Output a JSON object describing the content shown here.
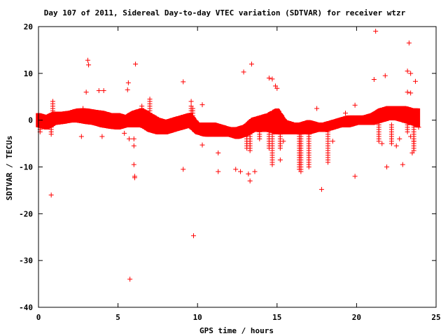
{
  "chart_data": {
    "type": "scatter",
    "title": "Day 107 of 2011, Sidereal Day-to-day VTEC variation (SDTVAR) for receiver wtzr",
    "xlabel": "GPS time / hours",
    "ylabel": "SDTVAR / TECUs",
    "xlim": [
      0,
      25
    ],
    "ylim": [
      -40,
      20
    ],
    "xticks": [
      0,
      5,
      10,
      15,
      20,
      25
    ],
    "yticks": [
      -40,
      -30,
      -20,
      -10,
      0,
      10,
      20
    ],
    "marker": "plus",
    "color": "#ff0000",
    "grid": false,
    "dense_band": [
      [
        0.0,
        -1.5,
        1.5
      ],
      [
        0.5,
        -2.0,
        1.0
      ],
      [
        1.0,
        -1.0,
        1.8
      ],
      [
        1.5,
        -0.8,
        1.8
      ],
      [
        2.0,
        -0.5,
        2.0
      ],
      [
        2.5,
        -0.5,
        2.5
      ],
      [
        3.0,
        -0.8,
        2.5
      ],
      [
        3.5,
        -1.0,
        2.2
      ],
      [
        4.0,
        -1.5,
        2.0
      ],
      [
        4.5,
        -1.8,
        1.5
      ],
      [
        5.0,
        -2.0,
        1.5
      ],
      [
        5.5,
        -1.5,
        1.0
      ],
      [
        6.0,
        -1.5,
        2.0
      ],
      [
        6.5,
        -1.5,
        2.5
      ],
      [
        7.0,
        -2.5,
        1.5
      ],
      [
        7.5,
        -3.0,
        0.5
      ],
      [
        8.0,
        -3.0,
        0.0
      ],
      [
        8.5,
        -2.5,
        0.5
      ],
      [
        9.0,
        -2.0,
        1.0
      ],
      [
        9.5,
        -1.5,
        1.5
      ],
      [
        10.0,
        -3.0,
        -0.5
      ],
      [
        10.5,
        -3.5,
        -0.5
      ],
      [
        11.0,
        -3.5,
        -0.5
      ],
      [
        11.5,
        -3.5,
        -1.0
      ],
      [
        12.0,
        -3.5,
        -1.5
      ],
      [
        12.5,
        -4.0,
        -1.5
      ],
      [
        13.0,
        -3.5,
        -1.0
      ],
      [
        13.5,
        -2.5,
        0.5
      ],
      [
        14.0,
        -2.5,
        1.0
      ],
      [
        14.5,
        -2.5,
        1.5
      ],
      [
        15.0,
        -3.0,
        2.5
      ],
      [
        15.5,
        -3.0,
        0.0
      ],
      [
        16.0,
        -3.0,
        -0.5
      ],
      [
        16.5,
        -3.0,
        -0.5
      ],
      [
        17.0,
        -3.0,
        0.0
      ],
      [
        17.5,
        -2.5,
        -0.5
      ],
      [
        18.0,
        -2.5,
        -0.5
      ],
      [
        18.5,
        -2.0,
        0.0
      ],
      [
        19.0,
        -1.5,
        0.5
      ],
      [
        19.5,
        -1.5,
        1.0
      ],
      [
        20.0,
        -1.0,
        1.0
      ],
      [
        20.5,
        -1.0,
        1.0
      ],
      [
        21.0,
        -1.0,
        1.5
      ],
      [
        21.5,
        -0.5,
        2.5
      ],
      [
        22.0,
        0.0,
        3.0
      ],
      [
        22.5,
        0.0,
        3.0
      ],
      [
        23.0,
        -0.5,
        3.0
      ],
      [
        23.5,
        -1.0,
        2.5
      ],
      [
        23.9,
        -1.5,
        2.5
      ]
    ],
    "spikes": [
      [
        0.1,
        -2.5
      ],
      [
        0.8,
        -3.0
      ],
      [
        0.9,
        4.0
      ],
      [
        6.5,
        3.0
      ],
      [
        7.0,
        4.5
      ],
      [
        9.6,
        3.0
      ],
      [
        9.7,
        2.5
      ],
      [
        13.1,
        -6.0
      ],
      [
        13.3,
        -6.5
      ],
      [
        13.9,
        -4.0
      ],
      [
        14.5,
        -6.0
      ],
      [
        14.7,
        -9.5
      ],
      [
        15.2,
        -6.0
      ],
      [
        16.4,
        -10.5
      ],
      [
        16.5,
        -11.0
      ],
      [
        17.0,
        -10.0
      ],
      [
        18.2,
        -9.0
      ],
      [
        21.4,
        -4.5
      ],
      [
        22.2,
        -5.0
      ],
      [
        23.2,
        -2.5
      ],
      [
        23.6,
        -6.5
      ]
    ],
    "outliers": [
      [
        0.8,
        -16.0
      ],
      [
        2.7,
        -3.5
      ],
      [
        2.8,
        2.5
      ],
      [
        3.0,
        6.0
      ],
      [
        3.1,
        12.8
      ],
      [
        3.15,
        11.8
      ],
      [
        3.8,
        6.3
      ],
      [
        4.1,
        6.3
      ],
      [
        4.0,
        -3.5
      ],
      [
        5.4,
        -2.8
      ],
      [
        5.6,
        6.5
      ],
      [
        5.65,
        8.0
      ],
      [
        5.7,
        -4.0
      ],
      [
        5.75,
        -34.0
      ],
      [
        6.0,
        -4.0
      ],
      [
        6.0,
        -5.5
      ],
      [
        6.0,
        -9.5
      ],
      [
        6.05,
        -12.0
      ],
      [
        6.05,
        -12.3
      ],
      [
        6.1,
        12.0
      ],
      [
        9.1,
        8.2
      ],
      [
        9.1,
        -10.5
      ],
      [
        9.6,
        4.0
      ],
      [
        9.75,
        -24.7
      ],
      [
        10.3,
        3.3
      ],
      [
        10.3,
        -5.3
      ],
      [
        11.3,
        -7.0
      ],
      [
        11.3,
        -11.0
      ],
      [
        12.4,
        -10.5
      ],
      [
        12.7,
        -11.0
      ],
      [
        12.9,
        10.3
      ],
      [
        13.2,
        -11.5
      ],
      [
        13.3,
        -13.0
      ],
      [
        13.4,
        12.0
      ],
      [
        13.6,
        -11.0
      ],
      [
        14.5,
        9.0
      ],
      [
        14.7,
        8.8
      ],
      [
        14.9,
        7.3
      ],
      [
        15.0,
        6.8
      ],
      [
        15.2,
        -8.5
      ],
      [
        15.4,
        -4.5
      ],
      [
        17.5,
        2.5
      ],
      [
        17.8,
        -14.8
      ],
      [
        18.5,
        -4.5
      ],
      [
        19.3,
        1.5
      ],
      [
        19.9,
        3.2
      ],
      [
        19.9,
        -12.0
      ],
      [
        21.2,
        19.0
      ],
      [
        21.1,
        8.7
      ],
      [
        21.6,
        -5.0
      ],
      [
        21.8,
        9.5
      ],
      [
        21.9,
        -10.0
      ],
      [
        22.5,
        -5.5
      ],
      [
        22.7,
        -4.0
      ],
      [
        22.9,
        -9.5
      ],
      [
        23.2,
        10.5
      ],
      [
        23.2,
        6.0
      ],
      [
        23.3,
        16.5
      ],
      [
        23.4,
        10.0
      ],
      [
        23.4,
        5.8
      ],
      [
        23.4,
        -3.5
      ],
      [
        23.5,
        -7.0
      ],
      [
        23.6,
        -4.5
      ],
      [
        23.7,
        8.3
      ],
      [
        23.8,
        1.5
      ],
      [
        23.9,
        -1.5
      ]
    ]
  }
}
